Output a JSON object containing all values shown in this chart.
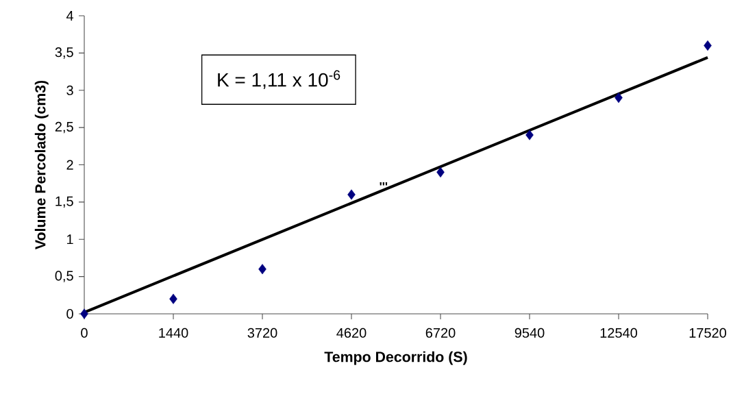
{
  "chart_data": {
    "type": "scatter",
    "xlabel": "Tempo Decorrido (S)",
    "ylabel": "Volume Percolado (cm3)",
    "categories": [
      "0",
      "1440",
      "3720",
      "4620",
      "6720",
      "9540",
      "12540",
      "17520"
    ],
    "series": [
      {
        "color": "#000080",
        "marker": "diamond",
        "values": [
          0,
          0.2,
          0.6,
          1.6,
          1.9,
          2.4,
          2.9,
          3.6
        ]
      },
      {
        "type": "line",
        "color": "#000000",
        "marker": "none",
        "line_style": "solid",
        "x": [
          "0",
          "17520"
        ],
        "values": [
          0.02,
          3.44
        ]
      }
    ],
    "ylim": [
      0,
      4
    ],
    "yticks": [
      0,
      {
        "value": 0.5,
        "label": "0,5"
      },
      1,
      {
        "value": 1.5,
        "label": "1,5"
      },
      2,
      {
        "value": 2.5,
        "label": "2,5"
      },
      3,
      {
        "value": 3.5,
        "label": "3,5"
      },
      4
    ],
    "annotations": [
      "K = 1,11 x 10$^{-6}$",
      "'''"
    ]
  }
}
